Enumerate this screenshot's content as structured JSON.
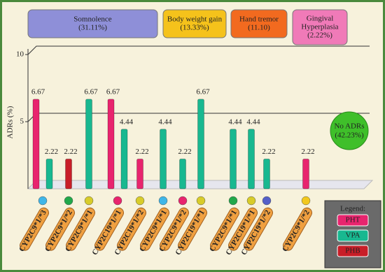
{
  "chart_data": {
    "type": "bar",
    "ylabel": "ADRs (%)",
    "ylim": [
      0,
      10
    ],
    "yticks": [
      5,
      10
    ],
    "grid": true,
    "categories": [
      "CYP2C9*1/*3",
      "CYP2C9*1/*2",
      "CYP2C9*1/*1",
      "CYP2C19*1/*1",
      "CYP2C19*1/*2",
      "CYP2C9*1/*1",
      "CYP2C9*1/*2",
      "CYP2C19*1/*1",
      "CYP2C9*1/*1",
      "CYP2C19*1/*1",
      "CYP2C19*1/*2",
      "CYP2C9*1/*2"
    ],
    "category_colors": [
      "#3fb6e8",
      "#22a84a",
      "#d8cc2a",
      "#e8246e",
      "#d8cc2a",
      "#3fb6e8",
      "#e8246e",
      "#d8cc2a",
      "#22a84a",
      "#d8cc2a",
      "#5560c8",
      "#f2c81e"
    ],
    "series": [
      {
        "name": "PHT",
        "color": "#e8246e",
        "values": [
          6.67,
          null,
          null,
          6.67,
          2.22,
          null,
          null,
          null,
          null,
          null,
          null,
          2.22
        ]
      },
      {
        "name": "VPA",
        "color": "#18b890",
        "values": [
          2.22,
          null,
          6.67,
          4.44,
          null,
          4.44,
          2.22,
          6.67,
          4.44,
          4.44,
          2.22,
          null
        ]
      },
      {
        "name": "PHB",
        "color": "#c81e28",
        "values": [
          null,
          2.22,
          null,
          null,
          null,
          null,
          null,
          null,
          null,
          null,
          null,
          null
        ]
      }
    ],
    "legend_title": "Legend:",
    "annotations": [
      {
        "lines": [
          "Somnolence",
          "(31.11%)"
        ],
        "color": "#8e8fd8"
      },
      {
        "lines": [
          "Body weight gain",
          "(13.33%)"
        ],
        "color": "#f5c21b"
      },
      {
        "lines": [
          "Hand tremor",
          "(11.10)"
        ],
        "color": "#f26a1f"
      },
      {
        "lines": [
          "Gingival",
          "Hyperplasia",
          "(2.22%)"
        ],
        "color": "#f07ab8"
      }
    ],
    "note": {
      "lines": [
        "No ADRs",
        "(42.23%)"
      ],
      "color": "#3fbf2a"
    }
  }
}
